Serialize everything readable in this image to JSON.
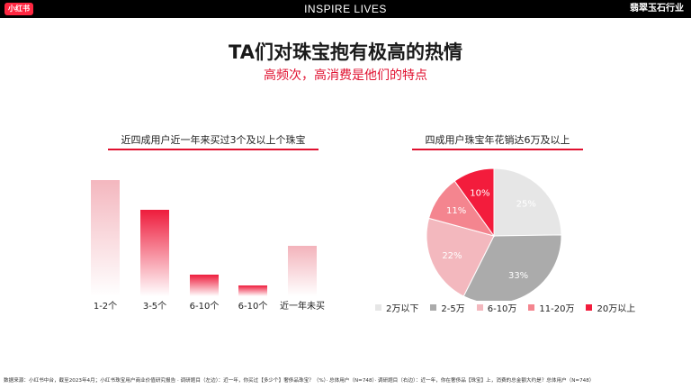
{
  "header": {
    "logo_text": "小红书",
    "brand": "INSPIRE LIVES",
    "industry": "翡翠玉石行业"
  },
  "title": "TA们对珠宝抱有极高的热情",
  "subtitle": "高频次，高消费是他们的特点",
  "left_section": {
    "heading": "近四成用户近一年来买过3个及以上个珠宝"
  },
  "right_section": {
    "heading": "四成用户珠宝年花销达6万及以上"
  },
  "footer": "数据来源：小红书中台，截至2023年4月；小红书珠宝用户商业价值研究报告 · 调研题目（左边）：近一年，你买过【多少个】奢侈品珠宝？（%）· 总体用户（N=748）· 调研题目（右边）：近一年，你在奢侈品【珠宝】上，消费的总金额大约是？总体用户（N=748）",
  "colors": {
    "accent": "#e0102f",
    "header_bg": "#000000"
  },
  "chart_data": [
    {
      "type": "bar",
      "title": "近四成用户近一年来买过3个及以上个珠宝",
      "categories": [
        "1-2个",
        "3-5个",
        "6-10个",
        "6-10个",
        "近一年未买"
      ],
      "values": [
        34,
        24,
        6,
        3,
        14
      ],
      "colors": [
        "#f3b3bb",
        "#ee1c3c",
        "#ee1c3c",
        "#ee1c3c",
        "#f3b3bb"
      ],
      "ylim": [
        0,
        40
      ],
      "grid": false,
      "legend": "none"
    },
    {
      "type": "pie",
      "title": "四成用户珠宝年花销达6万及以上",
      "labels": [
        "2万以下",
        "2-5万",
        "6-10万",
        "11-20万",
        "20万以上"
      ],
      "values": [
        25,
        33,
        22,
        11,
        10
      ],
      "value_labels": [
        "25%",
        "33%",
        "22%",
        "11%",
        "10%"
      ],
      "colors": [
        "#e6e6e6",
        "#ababab",
        "#f3b8be",
        "#f4858f",
        "#f31c3c"
      ],
      "legend": "bottom"
    }
  ]
}
